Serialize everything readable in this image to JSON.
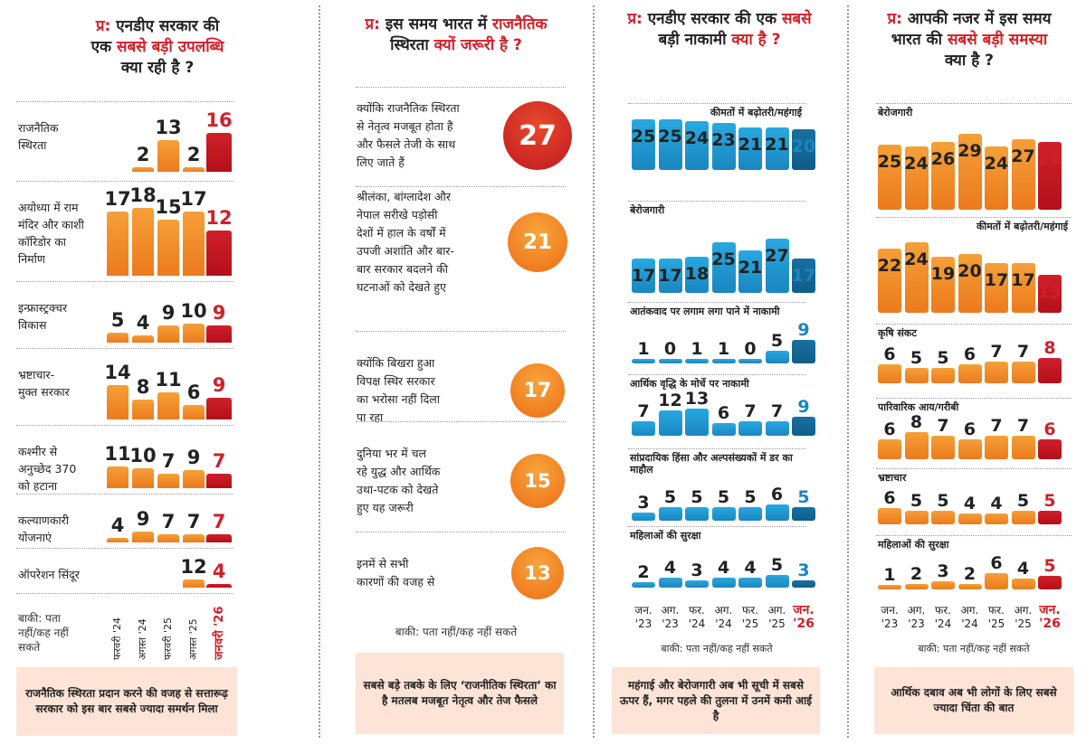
{
  "colors": {
    "orange": "#f5a038",
    "orange_dark": "#ec7a1d",
    "red": "#d0202a",
    "blue_light": "#29a8e0",
    "blue_dark": "#0e5e8a",
    "circle_red": "#d0202a",
    "circle_orange": "#f28a1c"
  },
  "chart_data": [
    {
      "type": "bar",
      "q_prefix": "प्र:",
      "title_lines": [
        [
          "एनडीए सरकार की",
          ""
        ],
        [
          "एक ",
          "सबसे बड़ी उपलब्धि"
        ],
        [
          "क्या रही है ?",
          ""
        ]
      ],
      "categories": [
        "फरवरी '24",
        "अगस्त '24",
        "फरवरी '25",
        "अगस्त '25",
        "जनवरी '26"
      ],
      "series": [
        {
          "label_lines": [
            "राजनैतिक",
            "स्थिरता"
          ],
          "values": [
            null,
            2,
            13,
            2,
            16
          ]
        },
        {
          "label_lines": [
            "अयोध्या में राम",
            "मंदिर और काशी",
            "कॉरिडोर का",
            "निर्माण"
          ],
          "values": [
            17,
            18,
            15,
            17,
            12
          ]
        },
        {
          "label_lines": [
            "इन्फ्रास्ट्रक्चर",
            "विकास"
          ],
          "values": [
            5,
            4,
            9,
            10,
            9
          ]
        },
        {
          "label_lines": [
            "भ्रष्टाचार-",
            "मुक्त सरकार"
          ],
          "values": [
            14,
            8,
            11,
            6,
            9
          ]
        },
        {
          "label_lines": [
            "कश्मीर से",
            "अनुच्छेद 370",
            "को हटाना"
          ],
          "values": [
            11,
            10,
            7,
            9,
            7
          ]
        },
        {
          "label_lines": [
            "कल्याणकारी",
            "योजनाएं"
          ],
          "values": [
            4,
            9,
            7,
            7,
            7
          ]
        },
        {
          "label_lines": [
            "ऑपरेशन सिंदूर"
          ],
          "values": [
            null,
            null,
            null,
            12,
            4
          ]
        }
      ],
      "rest_lines": [
        "बाकी: पता",
        "नहीं/कह नहीं",
        "सकते"
      ],
      "footer": "राजनैतिक स्थिरता प्रदान करने की वजह से सत्तारूढ़ सरकार को इस बार सबसे ज्यादा समर्थन मिला"
    },
    {
      "type": "table",
      "q_prefix": "प्र:",
      "title_lines": [
        [
          "इस समय भारत में ",
          "राजनैतिक"
        ],
        [
          "स्थिरता",
          " क्यों जरूरी है ?"
        ]
      ],
      "reasons": [
        {
          "lines": [
            "क्योंकि राजनैतिक स्थिरता",
            "से नेतृत्व मजबूत होता है",
            "और फैसले तेजी के साथ",
            "लिए जाते हैं"
          ],
          "value": 27
        },
        {
          "lines": [
            "श्रीलंका, बांग्लादेश और",
            "नेपाल सरीखे पड़ोसी",
            "देशों में हाल के वर्षों में",
            "उपजी अशांति और बार-",
            "बार सरकार बदलने की",
            "घटनाओं को देखते हुए"
          ],
          "value": 21
        },
        {
          "lines": [
            "क्योंकि बिखरा हुआ",
            "विपक्ष स्थिर सरकार",
            "का भरोसा नहीं दिला",
            "पा रहा"
          ],
          "value": 17
        },
        {
          "lines": [
            "दुनिया भर में चल",
            "रहे युद्ध और आर्थिक",
            "उथा-पटक को देखते",
            "हुए यह जरूरी"
          ],
          "value": 15
        },
        {
          "lines": [
            "इनमें से सभी",
            "कारणों की वजह से"
          ],
          "value": 13
        }
      ],
      "rest": "बाकी: पता नहीं/कह नहीं सकते",
      "footer": "सबसे बड़े तबके के लिए ‘राजनीतिक स्थिरता’ का है मतलब मजबूत नेतृत्व और तेज फैसले"
    },
    {
      "type": "bar",
      "q_prefix": "प्र:",
      "title_lines": [
        [
          "एनडीए सरकार की एक ",
          "सबसे"
        ],
        [
          "बड़ी नाकामी",
          " क्या है ?"
        ]
      ],
      "ticks": [
        [
          "जन.",
          "'23"
        ],
        [
          "अग.",
          "'23"
        ],
        [
          "फर.",
          "'24"
        ],
        [
          "अग.",
          "'24"
        ],
        [
          "फर.",
          "'25"
        ],
        [
          "अग.",
          "'25"
        ],
        [
          "जन.",
          "'26"
        ]
      ],
      "series": [
        {
          "label": "कीमतों में बढ़ोतरी/महंगाई",
          "values": [
            25,
            25,
            24,
            23,
            21,
            21,
            20
          ]
        },
        {
          "label": "बेरोजगारी",
          "values": [
            17,
            17,
            18,
            25,
            21,
            27,
            17
          ]
        },
        {
          "label": "आतंकवाद पर लगाम लगा पाने में नाकामी",
          "values": [
            1,
            0,
            1,
            1,
            0,
            5,
            9
          ]
        },
        {
          "label": "आर्थिक वृद्धि के मोर्चे पर नाकामी",
          "values": [
            7,
            12,
            13,
            6,
            7,
            7,
            9
          ]
        },
        {
          "label": "सांप्रदायिक हिंसा और अल्पसंख्यकों में डर का माहौल",
          "values": [
            3,
            5,
            5,
            5,
            5,
            6,
            5
          ]
        },
        {
          "label": "महिलाओं की सुरक्षा",
          "values": [
            2,
            4,
            3,
            4,
            4,
            5,
            3
          ]
        }
      ],
      "rest": "बाकी: पता नहीं/कह नहीं सकते",
      "footer": "महंगाई और बेरोजगारी अब भी सूची में सबसे ऊपर हैं, मगर पहले की तुलना में उनमें कमी आई है"
    },
    {
      "type": "bar",
      "q_prefix": "प्र:",
      "title_lines": [
        [
          "आपकी नजर में इस समय",
          ""
        ],
        [
          "भारत की ",
          "सबसे बड़ी समस्या"
        ],
        [
          "क्या है ?",
          ""
        ]
      ],
      "ticks": [
        [
          "जन.",
          "'23"
        ],
        [
          "अग.",
          "'23"
        ],
        [
          "फर.",
          "'24"
        ],
        [
          "अग.",
          "'24"
        ],
        [
          "फर.",
          "'25"
        ],
        [
          "अग.",
          "'25"
        ],
        [
          "जन.",
          "'26"
        ]
      ],
      "series": [
        {
          "label": "बेरोजगारी",
          "values": [
            25,
            24,
            26,
            29,
            24,
            27,
            26
          ]
        },
        {
          "label": "कीमतों में बढ़ोतरी/महंगाई",
          "values": [
            22,
            24,
            19,
            20,
            17,
            17,
            13
          ]
        },
        {
          "label": "कृषि संकट",
          "values": [
            6,
            5,
            5,
            6,
            7,
            7,
            8
          ]
        },
        {
          "label": "पारिवारिक आय/गरीबी",
          "values": [
            6,
            8,
            7,
            6,
            7,
            7,
            6
          ]
        },
        {
          "label": "भ्रष्टाचार",
          "values": [
            6,
            5,
            5,
            4,
            4,
            5,
            5
          ]
        },
        {
          "label": "महिलाओं की सुरक्षा",
          "values": [
            1,
            2,
            3,
            2,
            6,
            4,
            5
          ]
        }
      ],
      "rest": "बाकी: पता नहीं/कह नहीं सकते",
      "footer": "आर्थिक दबाव अब भी लोगों के लिए सबसे ज्यादा चिंता की बात"
    }
  ]
}
